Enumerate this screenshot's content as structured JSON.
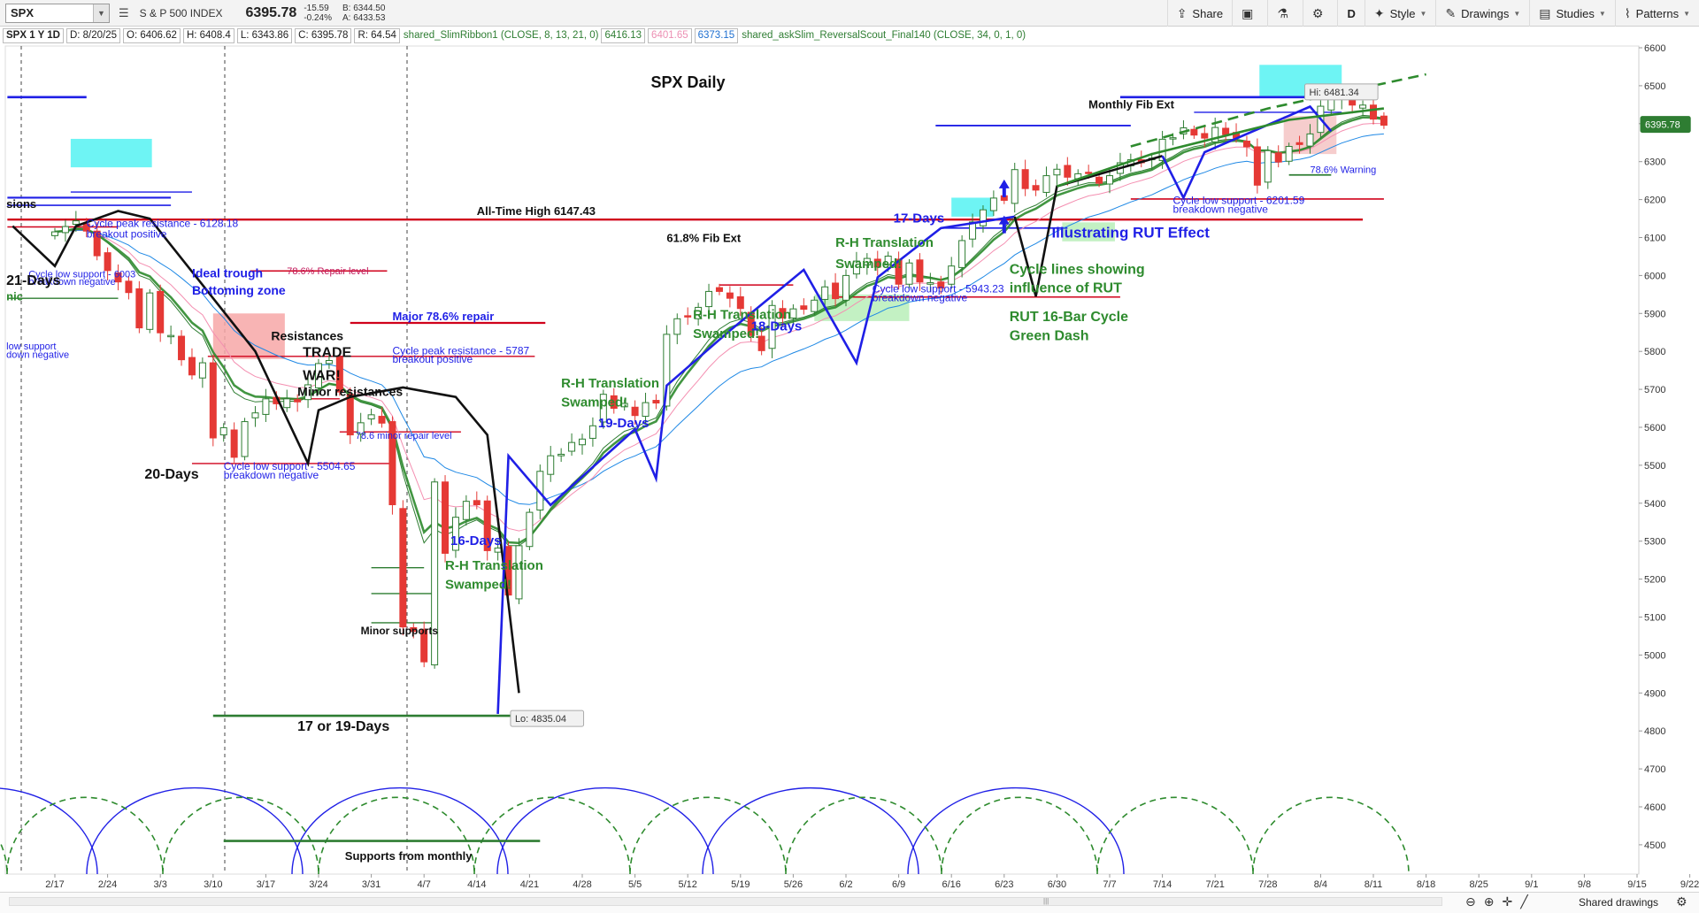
{
  "toolbar": {
    "symbol": "SPX",
    "symbol_name": "S & P 500 INDEX",
    "last": "6395.78",
    "change": "-15.59",
    "change_pct": "-0.24%",
    "bid": "B: 6344.50",
    "ask": "A: 6433.53",
    "buttons": {
      "share": "Share",
      "period": "D",
      "style": "Style",
      "drawings": "Drawings",
      "studies": "Studies",
      "patterns": "Patterns"
    },
    "icons": [
      "dropdown-icon",
      "list-icon",
      "share-icon",
      "camera-icon",
      "flask-icon",
      "gear-icon",
      "style-icon",
      "pencil-icon",
      "studies-icon",
      "patterns-icon"
    ]
  },
  "studybar": {
    "label": "SPX 1 Y 1D",
    "date": "D: 8/20/25",
    "open": "O: 6406.62",
    "high": "H: 6408.4",
    "low": "L: 6343.86",
    "close": "C: 6395.78",
    "rsi": "R: 64.54",
    "study1": "shared_SlimRibbon1 (CLOSE, 8, 13, 21, 0)",
    "study1_v1": "6416.13",
    "study1_v2": "6401.65",
    "study1_v3": "6373.15",
    "study2": "shared_askSlim_ReversalScout_Final140 (CLOSE, 34, 0, 1, 0)"
  },
  "colors": {
    "up_candle": "#2e7d32",
    "down_candle": "#e53935",
    "ema_fast": "#2e7d32",
    "ema_mid": "#f48fb1",
    "ema_slow": "#1e88e5",
    "cycle_blue": "#1f1fe6",
    "cycle_green": "#2e8b2e",
    "resistance_red": "#d0021b",
    "support_green": "#2e7d32",
    "fib_blue": "#1f1fe6",
    "highlight_cyan": "#55f2f2",
    "price_badge": "#2e7d32"
  },
  "chart_data": {
    "type": "candlestick",
    "title": "SPX Daily",
    "xlabel": "",
    "ylabel": "",
    "ylim": [
      4420,
      6620
    ],
    "y_ticks": [
      4500,
      4600,
      4700,
      4800,
      4900,
      5000,
      5100,
      5200,
      5300,
      5400,
      5500,
      5600,
      5700,
      5800,
      5900,
      6000,
      6100,
      6200,
      6300,
      6400,
      6500,
      6600
    ],
    "x_ticks": [
      "2/17",
      "2/24",
      "3/3",
      "3/10",
      "3/17",
      "3/24",
      "3/31",
      "4/7",
      "4/14",
      "4/21",
      "4/28",
      "5/5",
      "5/12",
      "5/19",
      "5/26",
      "6/2",
      "6/9",
      "6/16",
      "6/23",
      "6/30",
      "7/7",
      "7/14",
      "7/21",
      "7/28",
      "8/4",
      "8/11",
      "8/18",
      "8/25",
      "9/1",
      "9/8",
      "9/15",
      "9/22"
    ],
    "closes": [
      6115,
      6129,
      6144,
      6117,
      6052,
      6013,
      5983,
      5955,
      5862,
      5954,
      5849,
      5842,
      5778,
      5738,
      5770,
      5572,
      5599,
      5521,
      5615,
      5638,
      5675,
      5662,
      5675,
      5667,
      5712,
      5768,
      5776,
      5693,
      5580,
      5612,
      5633,
      5611,
      5396,
      5074,
      5062,
      4982,
      5456,
      5268,
      5363,
      5405,
      5396,
      5275,
      5282,
      5158,
      5288,
      5376,
      5484,
      5525,
      5529,
      5560,
      5569,
      5604,
      5687,
      5650,
      5663,
      5631,
      5665,
      5664,
      5845,
      5886,
      5892,
      5916,
      5958,
      5958,
      5940,
      5913,
      5842,
      5802,
      5921,
      5888,
      5912,
      5911,
      5935,
      5970,
      5939,
      6000,
      6038,
      6045,
      6022,
      6051,
      5977,
      6033,
      5983,
      5981,
      5967,
      6025,
      6092,
      6141,
      6173,
      6204,
      6198,
      6279,
      6229,
      6225,
      6263,
      6280,
      6259,
      6268,
      6269,
      6243,
      6263,
      6297,
      6305,
      6297,
      6309,
      6359,
      6363,
      6389,
      6370,
      6362,
      6390,
      6371,
      6362,
      6339,
      6238,
      6329,
      6299,
      6340,
      6345,
      6373,
      6446,
      6466,
      6468,
      6449,
      6449,
      6412,
      6396
    ],
    "series": [
      {
        "name": "shared_SlimRibbon1 (CLOSE, 8, 13, 21, 0)",
        "last": 6416.13
      },
      {
        "name": "",
        "last": 6401.65
      },
      {
        "name": "",
        "last": 6373.15
      }
    ],
    "high_label": "Hi: 6481.34",
    "low_label": "Lo: 4835.04",
    "last_label": "6395.78",
    "levels": [
      {
        "label": "All-Time High 6147.43",
        "value": 6147.43
      },
      {
        "label": "Cycle peak resistance - 6128.18",
        "value": 6128.18
      },
      {
        "label": "Cycle low support - 6003",
        "value": 6003
      },
      {
        "label": "78.6% Repair level",
        "value": 6012
      },
      {
        "label": "Major 78.6% repair",
        "value": 5875
      },
      {
        "label": "Cycle peak resistance - 5787",
        "value": 5787
      },
      {
        "label": "Cycle low support - 5504.65",
        "value": 5504.65
      },
      {
        "label": "78.6 minor repair level",
        "value": 5588
      },
      {
        "label": "Cycle low support - 5943.23",
        "value": 5943.23
      },
      {
        "label": "Cycle low support - 6201.59",
        "value": 6201.59
      },
      {
        "label": "61.8% Fib Ext",
        "value": 6125
      },
      {
        "label": "Monthly Fib Ext",
        "value": 6470
      },
      {
        "label": "78.6% Warning",
        "value": 6265
      }
    ],
    "annotations": [
      "SPX Daily",
      "Ideal trough",
      "Bottoming zone",
      "Resistances",
      "TRADE",
      "WAR!",
      "Minor resistances",
      "20-Days",
      "17 or 19-Days",
      "Supports from monthly",
      "Minor supports",
      "16-Days",
      "R-H Translation",
      "Swamped!",
      "19-Days",
      "18-Days",
      "17-Days",
      "Illustrating RUT Effect",
      "Cycle lines showing",
      "influence of RUT",
      "RUT 16-Bar Cycle",
      "Green Dash",
      "21-Days",
      "breakout positive",
      "breakdown negative",
      "sions",
      "nic",
      "low support",
      "down negative"
    ]
  },
  "bottombar": {
    "shared_drawings": "Shared drawings"
  }
}
